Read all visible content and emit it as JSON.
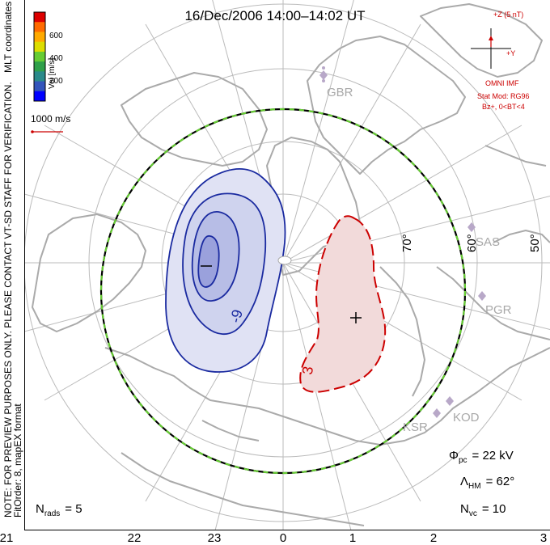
{
  "title": "16/Dec/2006 14:00–14:02 UT",
  "left_note": "NOTE: FOR PREVIEW PURPOSES ONLY. PLEASE CONTACT VT-SD STAFF FOR VERIFICATION.",
  "left_note_2": "FitOrder: 8, mapEX format",
  "coord_label": "MLT coordinates",
  "color_scale": {
    "label": "Vel [m/s]",
    "ticks": [
      "600",
      "400",
      "200"
    ],
    "colors": [
      "#dd0000",
      "#ff6a00",
      "#ffaa00",
      "#dddd00",
      "#66cc33",
      "#2fa04a",
      "#2a8a8a",
      "#3355bb",
      "#0000ff"
    ]
  },
  "vector_scale": "1000 m/s",
  "imf": {
    "z_label": "+Z (5 nT)",
    "y_label": "+Y",
    "source": "OMNI IMF",
    "model_line1": "Stat Mod: RG96",
    "model_line2": "Bz+, 0<BT<4",
    "color": "#cc0000"
  },
  "radars": [
    "GBR",
    "SAS",
    "PGR",
    "KOD",
    "KSR"
  ],
  "latitude_labels": [
    "70°",
    "60°",
    "50°"
  ],
  "contour_labels": [
    "-9",
    "3"
  ],
  "extrema": {
    "min_symbol": "−",
    "max_symbol": "+"
  },
  "stats": {
    "phi_pc_symbol": "Φ",
    "phi_pc_sub": "pc",
    "phi_pc_value": "= 22 kV",
    "lambda_symbol": "Λ",
    "lambda_sub": "HM",
    "lambda_value": "= 62°",
    "n_rads_symbol": "N",
    "n_rads_sub": "rads",
    "n_rads_value": "= 5",
    "n_vc_symbol": "N",
    "n_vc_sub": "vc",
    "n_vc_value": "= 10"
  },
  "mlt_axis": [
    "21",
    "22",
    "23",
    "0",
    "1",
    "2",
    "3"
  ],
  "colors": {
    "neg_potential": "#1a2aa0",
    "pos_potential": "#cc0000",
    "grid": "#bbbbbb",
    "coast": "#aaaaaa",
    "boundary_dash": "#66cc33"
  }
}
